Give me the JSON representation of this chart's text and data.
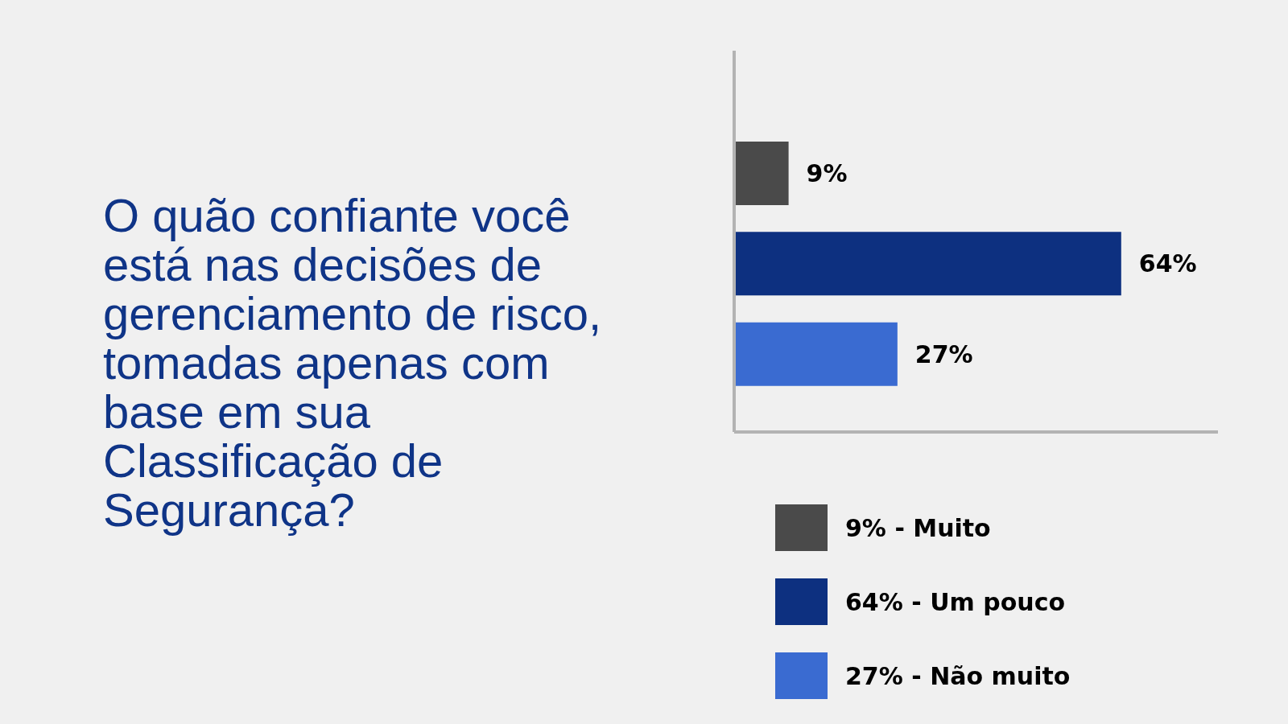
{
  "chart_data": {
    "type": "bar",
    "orientation": "horizontal",
    "stacked": true,
    "title": "O quão confiante você está nas decisões de gerenciamento de risco, tomadas apenas com base em sua Classificação de Segurança?",
    "categories": [
      null,
      null,
      null
    ],
    "series": [
      {
        "name": "9% - Muito",
        "color": "#4a4a4a",
        "values": [
          9,
          null,
          null
        ],
        "value_labels": [
          "9%",
          null,
          null
        ]
      },
      {
        "name": "64% - Um pouco",
        "color": "#0d3080",
        "values": [
          null,
          64,
          null
        ],
        "value_labels": [
          null,
          "64%",
          null
        ]
      },
      {
        "name": "27% - Não muito",
        "color": "#3a6bd1",
        "values": [
          null,
          null,
          27
        ],
        "value_labels": [
          null,
          null,
          "27%"
        ]
      }
    ],
    "tick_labels": false,
    "legend": "bottom"
  }
}
